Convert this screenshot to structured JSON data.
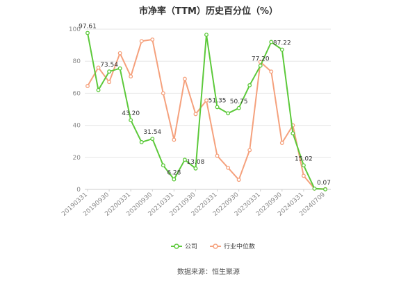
{
  "chart_data": {
    "type": "line",
    "title": "市净率（TTM）历史百分位（%）",
    "source": "数据来源：恒生聚源",
    "ylim": [
      0,
      100
    ],
    "yticks": [
      0,
      20,
      40,
      60,
      80,
      100
    ],
    "grid": true,
    "legend_position": "bottom",
    "x": [
      "20190331",
      "20190630",
      "20190930",
      "20191231",
      "20200331",
      "20200630",
      "20200930",
      "20201231",
      "20210331",
      "20210630",
      "20210930",
      "20211231",
      "20220331",
      "20220630",
      "20220930",
      "20221231",
      "20230331",
      "20230630",
      "20230930",
      "20231231",
      "20240331",
      "20240630",
      "20240709"
    ],
    "x_tick_labels": [
      "20190331",
      "20190930",
      "20200331",
      "20200930",
      "20210331",
      "20210930",
      "20220331",
      "20220930",
      "20230331",
      "20230930",
      "20240331",
      "20240709"
    ],
    "series": [
      {
        "name": "公司",
        "color": "#5cc93a",
        "values": [
          97.61,
          62,
          73.54,
          75.5,
          43.2,
          29.5,
          31.54,
          15,
          6.28,
          18.5,
          13.08,
          96.5,
          51.35,
          47.5,
          50.75,
          65,
          77.2,
          92,
          87.22,
          35,
          15.02,
          0.5,
          0.07
        ]
      },
      {
        "name": "行业中位数",
        "color": "#f5a17d",
        "values": [
          64.5,
          76,
          67,
          85,
          70.5,
          92.5,
          93.5,
          60,
          31,
          69,
          47,
          55.5,
          21,
          13.5,
          6,
          24.5,
          79.5,
          73.5,
          29,
          40,
          8.5,
          0.5,
          0.2
        ]
      }
    ],
    "data_labels": [
      {
        "series": 0,
        "index": 0,
        "text": "97.61"
      },
      {
        "series": 0,
        "index": 2,
        "text": "73.54"
      },
      {
        "series": 0,
        "index": 4,
        "text": "43.20"
      },
      {
        "series": 0,
        "index": 6,
        "text": "31.54"
      },
      {
        "series": 0,
        "index": 8,
        "text": "6.28"
      },
      {
        "series": 0,
        "index": 10,
        "text": "13.08"
      },
      {
        "series": 0,
        "index": 12,
        "text": "51.35"
      },
      {
        "series": 0,
        "index": 14,
        "text": "50.75"
      },
      {
        "series": 0,
        "index": 16,
        "text": "77.20"
      },
      {
        "series": 0,
        "index": 18,
        "text": "87.22"
      },
      {
        "series": 0,
        "index": 20,
        "text": "15.02"
      },
      {
        "series": 0,
        "index": 22,
        "text": "0.07"
      }
    ]
  }
}
